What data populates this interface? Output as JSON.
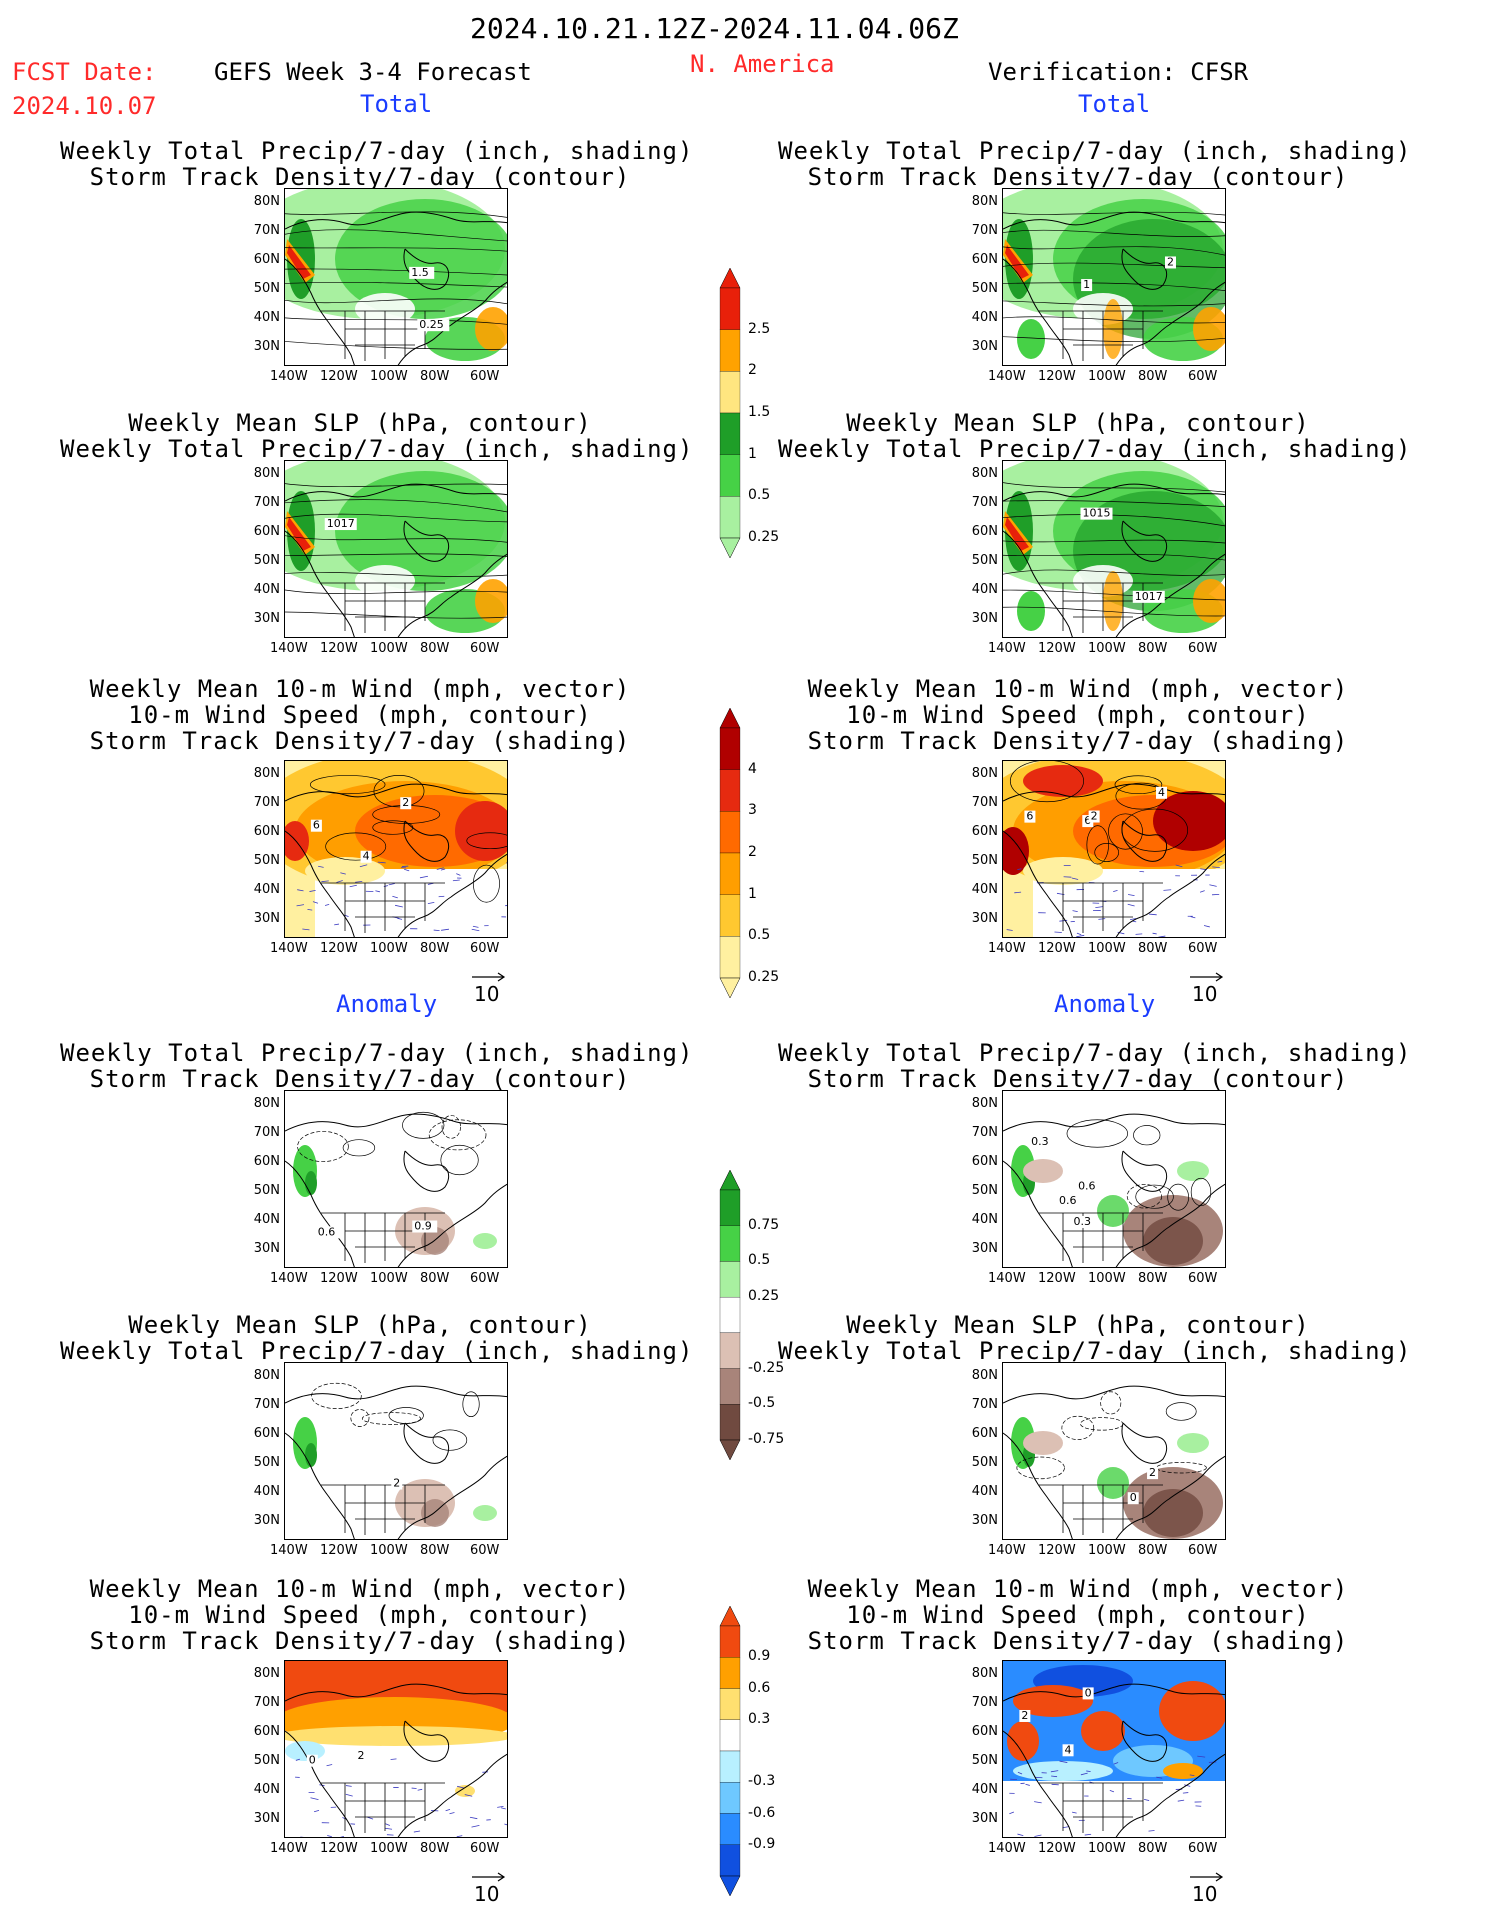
{
  "header": {
    "period": "2024.10.21.12Z-2024.11.04.06Z",
    "fcst_label": "FCST Date:",
    "fcst_date": "2024.10.07",
    "forecast_title": "GEFS Week 3-4 Forecast",
    "region": "N. America",
    "verification": "Verification: CFSR"
  },
  "sections": {
    "total": "Total",
    "anomaly": "Anomaly"
  },
  "titles": {
    "precip_storm": [
      "Weekly Total Precip/7-day (inch, shading)",
      "Storm Track Density/7-day (contour)"
    ],
    "slp_precip": [
      "Weekly Mean SLP (hPa, contour)",
      "Weekly Total Precip/7-day (inch, shading)"
    ],
    "wind_storm": [
      "Weekly Mean 10-m Wind (mph, vector)",
      "10-m Wind Speed (mph, contour)",
      "Storm Track Density/7-day (shading)"
    ]
  },
  "axes": {
    "lat": [
      "80N",
      "70N",
      "60N",
      "50N",
      "40N",
      "30N"
    ],
    "lon": [
      "140W",
      "120W",
      "100W",
      "80W",
      "60W"
    ]
  },
  "vector_ref": "10",
  "colorbars": {
    "precip_total": {
      "labels": [
        "2.5",
        "2",
        "1.5",
        "1",
        "0.5",
        "0.25"
      ],
      "colors": [
        "#e8200a",
        "#ffa200",
        "#ffe680",
        "#1f9e28",
        "#46d146",
        "#a8f0a0"
      ]
    },
    "storm_total": {
      "labels": [
        "4",
        "3",
        "2",
        "1",
        "0.5",
        "0.25"
      ],
      "colors": [
        "#b00000",
        "#e62a10",
        "#ff6a00",
        "#ff9e00",
        "#ffc830",
        "#fff0a0"
      ]
    },
    "precip_anom": {
      "labels": [
        "0.75",
        "0.5",
        "0.25",
        "-0.25",
        "-0.5",
        "-0.75"
      ],
      "colors": [
        "#1f9e28",
        "#46d146",
        "#a8f0a0",
        "#ffffff",
        "#dcc0b4",
        "#a8847a",
        "#704a40"
      ]
    },
    "storm_anom": {
      "labels": [
        "0.9",
        "0.6",
        "0.3",
        "-0.3",
        "-0.6",
        "-0.9"
      ],
      "colors": [
        "#f04a10",
        "#ffa000",
        "#ffe070",
        "#ffffff",
        "#b8f0ff",
        "#6ec8ff",
        "#2a8cff",
        "#1050e0"
      ]
    }
  },
  "panel_labels": {
    "p1": [
      "1.5",
      "0.25"
    ],
    "p2": [
      "2",
      "1"
    ],
    "p3": [
      "1017"
    ],
    "p4": [
      "1015",
      "1017"
    ],
    "p5": [
      "2",
      "4",
      "6"
    ],
    "p6": [
      "4",
      "6",
      "6",
      "2"
    ],
    "p7": [
      "0.6",
      "0.9"
    ],
    "p8": [
      "0.3",
      "0.6",
      "0.3",
      "0.6"
    ],
    "p9": [
      "2"
    ],
    "p10": [
      "2",
      "0"
    ],
    "p11": [
      "0",
      "2"
    ],
    "p12": [
      "4",
      "2",
      "0"
    ]
  }
}
